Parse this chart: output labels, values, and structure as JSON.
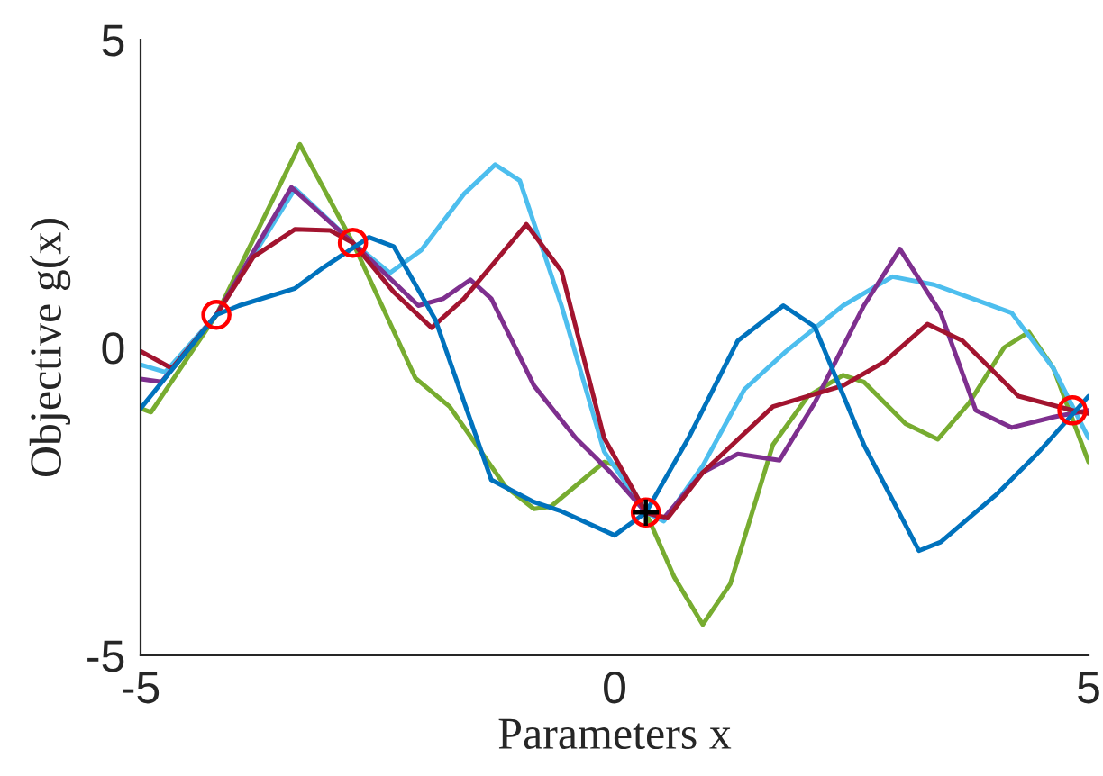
{
  "chart_data": {
    "type": "line",
    "xlabel": "Parameters x",
    "ylabel": "Objective g(x)",
    "xlim": [
      -5,
      5
    ],
    "ylim": [
      -5,
      5
    ],
    "xticks": [
      -5,
      0,
      5
    ],
    "yticks": [
      -5,
      0,
      5
    ],
    "grid": false,
    "legend": false,
    "series": [
      {
        "color": "#77ac30",
        "x": [
          -5,
          -4.89,
          -4.2,
          -3.32,
          -2.76,
          -2.1,
          -1.74,
          -1.15,
          -0.85,
          -0.67,
          -0.11,
          0.04,
          0.33,
          0.63,
          0.93,
          1.22,
          1.67,
          2.04,
          2.41,
          2.63,
          3.07,
          3.41,
          3.74,
          4.11,
          4.37,
          4.63,
          5
        ],
        "values": [
          -0.99,
          -1.05,
          0.53,
          3.3,
          1.7,
          -0.5,
          -0.96,
          -2.26,
          -2.62,
          -2.58,
          -1.86,
          -1.92,
          -2.68,
          -3.73,
          -4.5,
          -3.84,
          -1.58,
          -0.79,
          -0.45,
          -0.56,
          -1.24,
          -1.49,
          -0.9,
          0.0,
          0.25,
          -0.34,
          -1.86
        ]
      },
      {
        "color": "#4dbeee",
        "x": [
          -5,
          -4.74,
          -4.2,
          -3.37,
          -2.76,
          -2.37,
          -2.04,
          -1.59,
          -1.26,
          -1.0,
          -0.56,
          -0.11,
          0.33,
          0.52,
          0.93,
          1.37,
          1.81,
          2.41,
          2.93,
          3.37,
          3.89,
          4.19,
          4.63,
          5
        ],
        "values": [
          -0.28,
          -0.4,
          0.53,
          2.58,
          1.7,
          1.21,
          1.58,
          2.49,
          2.97,
          2.71,
          0.68,
          -1.69,
          -2.68,
          -2.82,
          -1.92,
          -0.68,
          -0.06,
          0.68,
          1.15,
          1.02,
          0.73,
          0.56,
          -0.34,
          -1.47
        ]
      },
      {
        "color": "#7e2f8e",
        "x": [
          -5,
          -4.78,
          -4.2,
          -3.41,
          -2.76,
          -2.07,
          -1.81,
          -1.52,
          -1.3,
          -0.85,
          -0.41,
          -0.04,
          0.33,
          0.52,
          0.93,
          1.3,
          1.74,
          2.11,
          2.63,
          3.01,
          3.44,
          3.81,
          4.19,
          4.63,
          5
        ],
        "values": [
          -0.51,
          -0.56,
          0.53,
          2.6,
          1.7,
          0.68,
          0.79,
          1.1,
          0.79,
          -0.62,
          -1.47,
          -2.03,
          -2.68,
          -2.77,
          -2.03,
          -1.73,
          -1.83,
          -0.9,
          0.68,
          1.6,
          0.56,
          -1.02,
          -1.3,
          -1.13,
          -1.02
        ]
      },
      {
        "color": "#a2142f",
        "x": [
          -5,
          -4.67,
          -4.2,
          -3.81,
          -3.37,
          -3.0,
          -2.76,
          -2.33,
          -1.93,
          -1.59,
          -0.93,
          -0.56,
          -0.11,
          0.33,
          0.56,
          0.93,
          1.67,
          2.41,
          2.85,
          3.3,
          3.67,
          4.26,
          4.83,
          5
        ],
        "values": [
          -0.06,
          -0.34,
          0.53,
          1.47,
          1.92,
          1.9,
          1.7,
          0.9,
          0.32,
          0.79,
          2.0,
          1.24,
          -1.47,
          -2.68,
          -2.77,
          -2.03,
          -0.96,
          -0.62,
          -0.23,
          0.38,
          0.11,
          -0.79,
          -1.02,
          -1.07
        ]
      },
      {
        "color": "#0072bd",
        "x": [
          -5,
          -4.2,
          -3.96,
          -3.37,
          -3.07,
          -2.59,
          -2.33,
          -1.89,
          -1.3,
          -0.85,
          -0.56,
          0,
          0.33,
          0.78,
          1.3,
          1.78,
          2.11,
          2.63,
          3.21,
          3.44,
          4.04,
          4.48,
          5
        ],
        "values": [
          -0.99,
          0.53,
          0.68,
          0.96,
          1.3,
          1.79,
          1.64,
          0.45,
          -2.15,
          -2.51,
          -2.66,
          -3.05,
          -2.68,
          -1.47,
          0.11,
          0.68,
          0.34,
          -1.58,
          -3.3,
          -3.16,
          -2.37,
          -1.69,
          -0.79
        ]
      },
      {
        "type": "scatter",
        "marker": "circle",
        "color": "#ff0000",
        "x": [
          -4.2,
          -2.76,
          0.33,
          4.83
        ],
        "values": [
          0.53,
          1.7,
          -2.68,
          -1.02
        ]
      },
      {
        "type": "scatter",
        "marker": "cross",
        "color": "#000000",
        "x": [
          0.33
        ],
        "values": [
          -2.68
        ]
      }
    ]
  }
}
